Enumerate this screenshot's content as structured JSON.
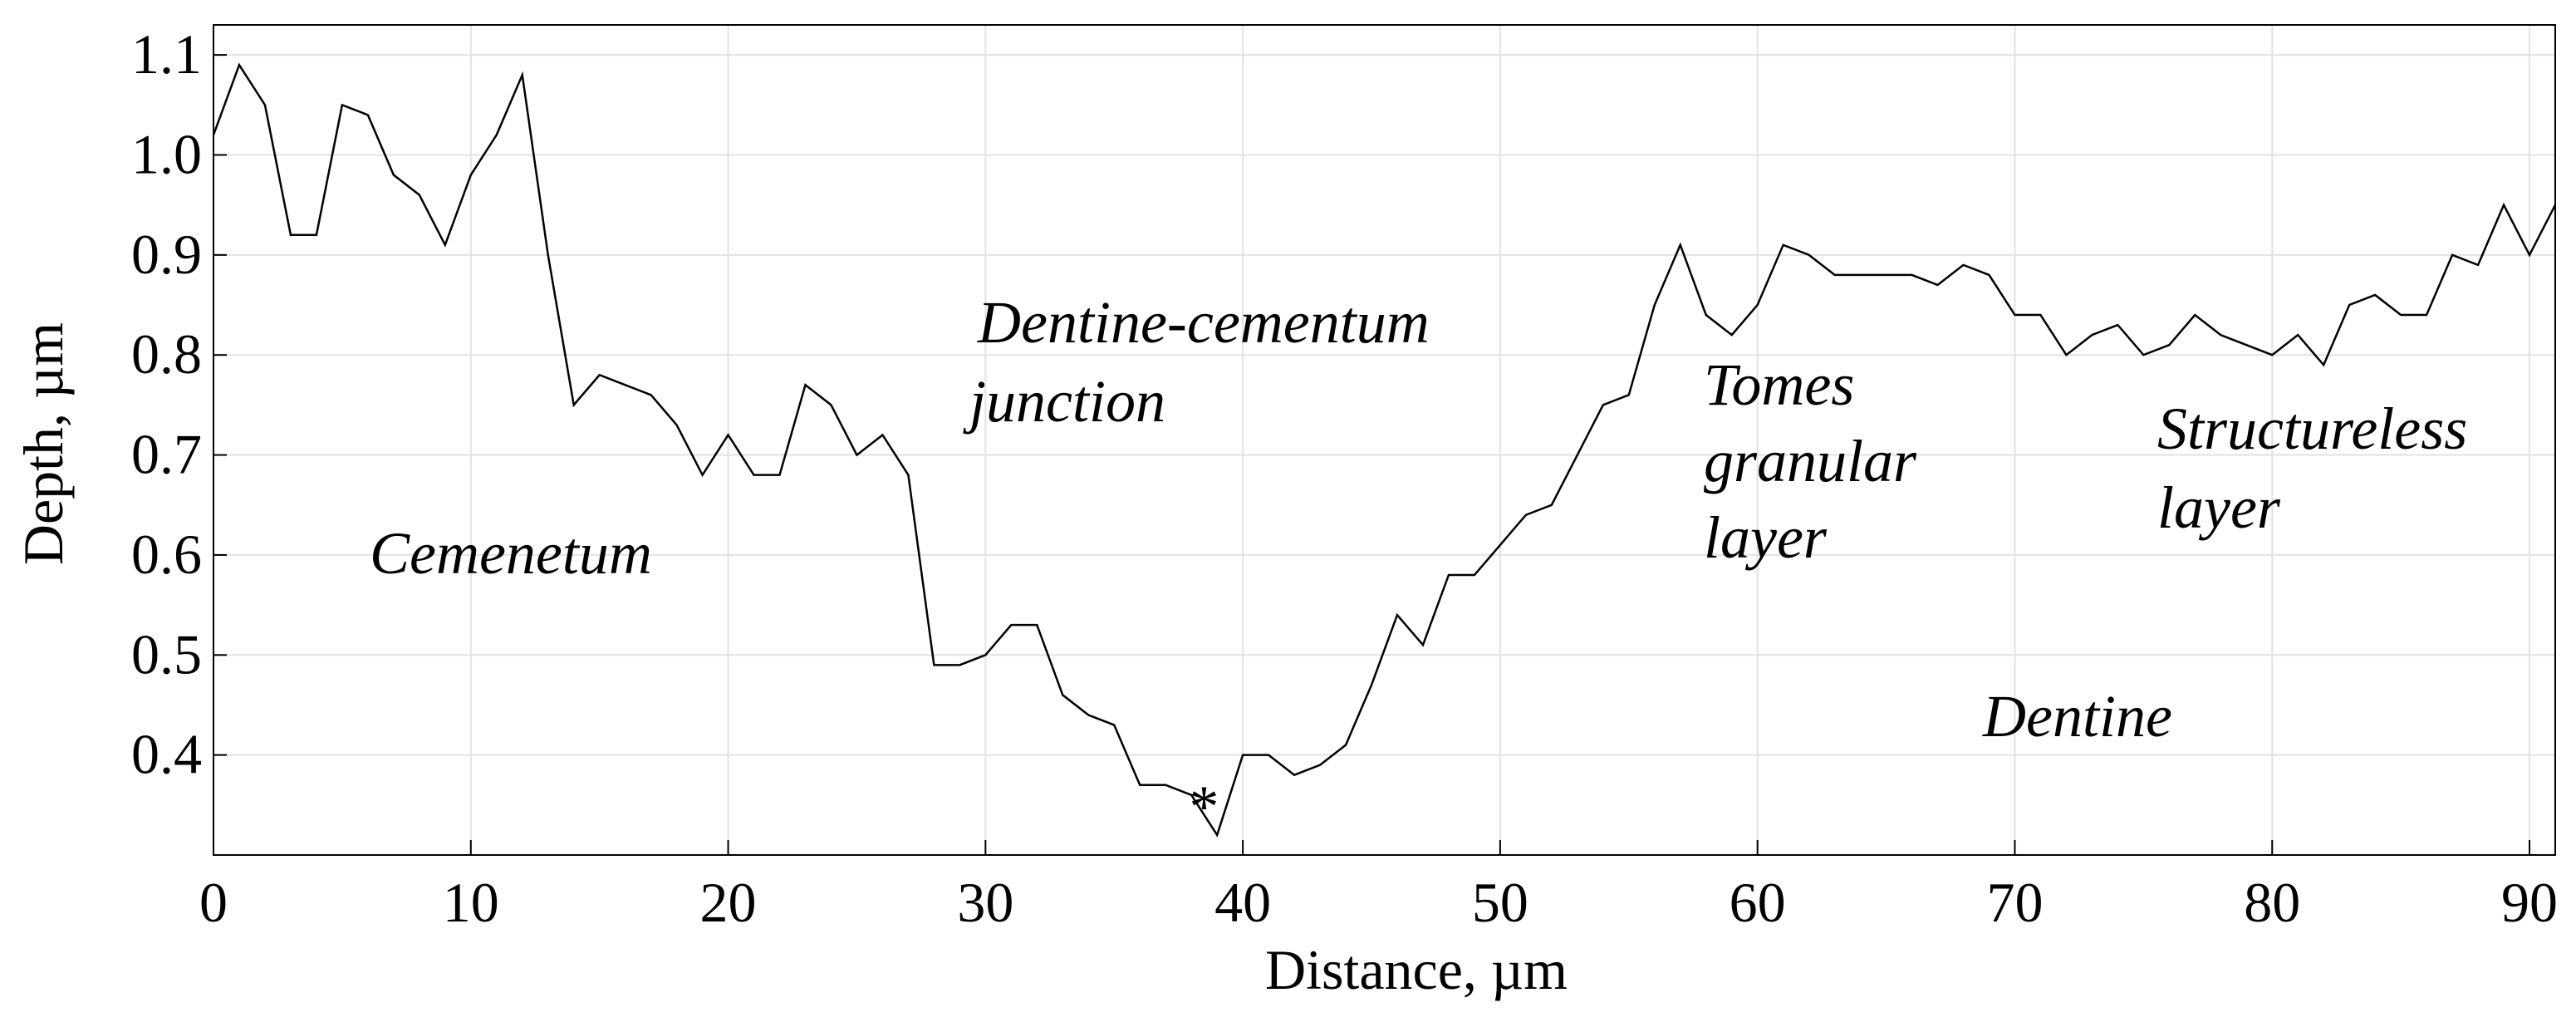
{
  "chart_data": {
    "type": "line",
    "x_label": "Distance, µm",
    "y_label": "Depth, µm",
    "x": [
      0,
      1,
      2,
      3,
      4,
      5,
      6,
      7,
      8,
      9,
      10,
      11,
      12,
      13,
      14,
      15,
      16,
      17,
      18,
      19,
      20,
      21,
      22,
      23,
      24,
      25,
      26,
      27,
      28,
      29,
      30,
      31,
      32,
      33,
      34,
      35,
      36,
      37,
      38,
      39,
      40,
      41,
      42,
      43,
      44,
      45,
      46,
      47,
      48,
      49,
      50,
      51,
      52,
      53,
      54,
      55,
      56,
      57,
      58,
      59,
      60,
      61,
      62,
      63,
      64,
      65,
      66,
      67,
      68,
      69,
      70,
      71,
      72,
      73,
      74,
      75,
      76,
      77,
      78,
      79,
      80,
      81,
      82,
      83,
      84,
      85,
      86,
      87,
      88,
      89,
      90,
      91
    ],
    "series": [
      {
        "color": "#000000",
        "values": [
          1.02,
          1.09,
          1.05,
          0.92,
          0.92,
          1.05,
          1.04,
          0.98,
          0.96,
          0.91,
          0.98,
          1.02,
          1.08,
          0.9,
          0.75,
          0.78,
          0.77,
          0.76,
          0.73,
          0.68,
          0.72,
          0.68,
          0.68,
          0.77,
          0.75,
          0.7,
          0.72,
          0.68,
          0.49,
          0.49,
          0.5,
          0.53,
          0.53,
          0.46,
          0.44,
          0.43,
          0.37,
          0.37,
          0.36,
          0.32,
          0.4,
          0.4,
          0.38,
          0.39,
          0.41,
          0.47,
          0.54,
          0.51,
          0.58,
          0.58,
          0.61,
          0.64,
          0.65,
          0.7,
          0.75,
          0.76,
          0.85,
          0.91,
          0.84,
          0.82,
          0.85,
          0.91,
          0.9,
          0.88,
          0.88,
          0.88,
          0.88,
          0.87,
          0.89,
          0.88,
          0.84,
          0.84,
          0.8,
          0.82,
          0.83,
          0.8,
          0.81,
          0.84,
          0.82,
          0.81,
          0.8,
          0.82,
          0.79,
          0.85,
          0.86,
          0.84,
          0.84,
          0.9,
          0.89,
          0.95,
          0.9,
          0.95
        ]
      }
    ],
    "xlim": [
      0,
      91
    ],
    "ylim": [
      0.3,
      1.13
    ],
    "xticks": [
      0,
      10,
      20,
      30,
      40,
      50,
      60,
      70,
      80,
      90
    ],
    "yticks": [
      0.4,
      0.5,
      0.6,
      0.7,
      0.8,
      0.9,
      {
        "value": 1.0,
        "label": "1.0"
      },
      1.1
    ],
    "grid": true,
    "annotations": [
      [
        "Cemenetum"
      ],
      [
        "Dentine-cementum",
        "junction"
      ],
      [
        "Tomes",
        "granular",
        "layer"
      ],
      [
        "Structureless",
        "layer"
      ],
      [
        "Dentine"
      ],
      [
        "*"
      ]
    ]
  }
}
